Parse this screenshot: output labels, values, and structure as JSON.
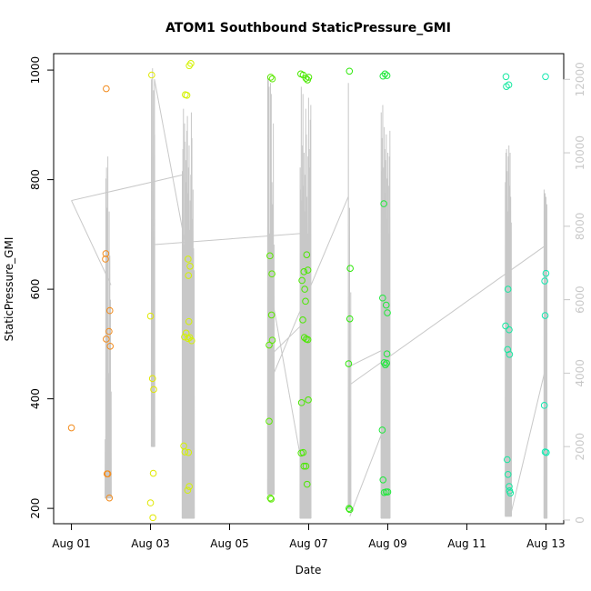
{
  "chart_data": {
    "type": "scatter",
    "title": "ATOM1 Southbound StaticPressure_GMI",
    "xlabel": "Date",
    "ylabel": "StaticPressure_GMI",
    "x_ticks": [
      {
        "day": 0,
        "label": "Aug 01"
      },
      {
        "day": 2,
        "label": "Aug 03"
      },
      {
        "day": 4,
        "label": "Aug 05"
      },
      {
        "day": 6,
        "label": "Aug 07"
      },
      {
        "day": 8,
        "label": "Aug 09"
      },
      {
        "day": 10,
        "label": "Aug 11"
      },
      {
        "day": 12,
        "label": "Aug 13"
      }
    ],
    "xlim": [
      -0.45,
      12.45
    ],
    "ylim": [
      172,
      1030
    ],
    "y_ticks": [
      200,
      400,
      600,
      800,
      1000
    ],
    "y2lim": [
      -100,
      12700
    ],
    "y2_ticks": [
      0,
      2000,
      4000,
      6000,
      8000,
      10000,
      12000
    ],
    "points": [
      {
        "x": 0.0,
        "y": 347,
        "c": "#f28c1e"
      },
      {
        "x": 0.88,
        "y": 966,
        "c": "#f28c1e"
      },
      {
        "x": 0.87,
        "y": 665,
        "c": "#f28c1e"
      },
      {
        "x": 0.86,
        "y": 655,
        "c": "#f28c1e"
      },
      {
        "x": 0.97,
        "y": 561,
        "c": "#f28c1e"
      },
      {
        "x": 0.95,
        "y": 523,
        "c": "#f28c1e"
      },
      {
        "x": 0.88,
        "y": 509,
        "c": "#f28c1e"
      },
      {
        "x": 0.98,
        "y": 496,
        "c": "#f28c1e"
      },
      {
        "x": 0.9,
        "y": 263,
        "c": "#f28c1e"
      },
      {
        "x": 0.92,
        "y": 263,
        "c": "#f28c1e"
      },
      {
        "x": 0.96,
        "y": 219,
        "c": "#f28c1e"
      },
      {
        "x": 2.03,
        "y": 991,
        "c": "#e0e800"
      },
      {
        "x": 2.0,
        "y": 551,
        "c": "#e0e800"
      },
      {
        "x": 2.05,
        "y": 437,
        "c": "#e0e800"
      },
      {
        "x": 2.08,
        "y": 417,
        "c": "#e0e800"
      },
      {
        "x": 2.07,
        "y": 264,
        "c": "#e0e800"
      },
      {
        "x": 2.0,
        "y": 210,
        "c": "#e0e800"
      },
      {
        "x": 2.06,
        "y": 183,
        "c": "#e0e800"
      },
      {
        "x": 2.88,
        "y": 955,
        "c": "#d4f200"
      },
      {
        "x": 2.92,
        "y": 954,
        "c": "#d4f200"
      },
      {
        "x": 2.98,
        "y": 1008,
        "c": "#d4f200"
      },
      {
        "x": 3.02,
        "y": 1012,
        "c": "#d4f200"
      },
      {
        "x": 2.95,
        "y": 655,
        "c": "#d4f200"
      },
      {
        "x": 3.0,
        "y": 642,
        "c": "#d4f200"
      },
      {
        "x": 2.96,
        "y": 625,
        "c": "#d4f200"
      },
      {
        "x": 2.97,
        "y": 541,
        "c": "#d4f200"
      },
      {
        "x": 2.9,
        "y": 520,
        "c": "#d4f200"
      },
      {
        "x": 2.86,
        "y": 513,
        "c": "#d4f200"
      },
      {
        "x": 2.95,
        "y": 510,
        "c": "#d4f200"
      },
      {
        "x": 2.99,
        "y": 512,
        "c": "#d4f200"
      },
      {
        "x": 3.04,
        "y": 506,
        "c": "#d4f200"
      },
      {
        "x": 2.84,
        "y": 314,
        "c": "#d4f200"
      },
      {
        "x": 2.87,
        "y": 303,
        "c": "#d4f200"
      },
      {
        "x": 2.96,
        "y": 302,
        "c": "#d4f200"
      },
      {
        "x": 2.94,
        "y": 233,
        "c": "#d4f200"
      },
      {
        "x": 2.98,
        "y": 240,
        "c": "#d4f200"
      },
      {
        "x": 5.04,
        "y": 987,
        "c": "#5ae800"
      },
      {
        "x": 5.08,
        "y": 984,
        "c": "#5ae800"
      },
      {
        "x": 5.02,
        "y": 661,
        "c": "#5ae800"
      },
      {
        "x": 5.07,
        "y": 628,
        "c": "#5ae800"
      },
      {
        "x": 5.06,
        "y": 553,
        "c": "#5ae800"
      },
      {
        "x": 5.08,
        "y": 507,
        "c": "#5ae800"
      },
      {
        "x": 5.0,
        "y": 498,
        "c": "#5ae800"
      },
      {
        "x": 5.0,
        "y": 359,
        "c": "#5ae800"
      },
      {
        "x": 5.03,
        "y": 219,
        "c": "#5ae800"
      },
      {
        "x": 5.05,
        "y": 217,
        "c": "#5ae800"
      },
      {
        "x": 5.8,
        "y": 993,
        "c": "#4ae800"
      },
      {
        "x": 5.86,
        "y": 991,
        "c": "#4ae800"
      },
      {
        "x": 5.93,
        "y": 985,
        "c": "#4ae800"
      },
      {
        "x": 6.0,
        "y": 987,
        "c": "#4ae800"
      },
      {
        "x": 5.97,
        "y": 982,
        "c": "#4ae800"
      },
      {
        "x": 5.83,
        "y": 616,
        "c": "#4ae800"
      },
      {
        "x": 5.88,
        "y": 632,
        "c": "#4ae800"
      },
      {
        "x": 5.95,
        "y": 663,
        "c": "#4ae800"
      },
      {
        "x": 5.98,
        "y": 635,
        "c": "#4ae800"
      },
      {
        "x": 5.9,
        "y": 600,
        "c": "#4ae800"
      },
      {
        "x": 5.92,
        "y": 578,
        "c": "#4ae800"
      },
      {
        "x": 5.85,
        "y": 544,
        "c": "#4ae800"
      },
      {
        "x": 5.89,
        "y": 512,
        "c": "#4ae800"
      },
      {
        "x": 5.94,
        "y": 509,
        "c": "#4ae800"
      },
      {
        "x": 5.98,
        "y": 508,
        "c": "#4ae800"
      },
      {
        "x": 5.82,
        "y": 393,
        "c": "#4ae800"
      },
      {
        "x": 5.99,
        "y": 398,
        "c": "#4ae800"
      },
      {
        "x": 5.81,
        "y": 301,
        "c": "#4ae800"
      },
      {
        "x": 5.86,
        "y": 302,
        "c": "#4ae800"
      },
      {
        "x": 5.88,
        "y": 277,
        "c": "#4ae800"
      },
      {
        "x": 5.93,
        "y": 277,
        "c": "#4ae800"
      },
      {
        "x": 5.96,
        "y": 244,
        "c": "#4ae800"
      },
      {
        "x": 7.03,
        "y": 998,
        "c": "#2ee80a"
      },
      {
        "x": 7.05,
        "y": 638,
        "c": "#2ee80a"
      },
      {
        "x": 7.04,
        "y": 546,
        "c": "#2ee80a"
      },
      {
        "x": 7.01,
        "y": 464,
        "c": "#2ee80a"
      },
      {
        "x": 7.02,
        "y": 200,
        "c": "#2ee80a"
      },
      {
        "x": 7.04,
        "y": 198,
        "c": "#2ee80a"
      },
      {
        "x": 7.88,
        "y": 989,
        "c": "#1ee83a"
      },
      {
        "x": 7.93,
        "y": 993,
        "c": "#1ee83a"
      },
      {
        "x": 7.98,
        "y": 990,
        "c": "#1ee83a"
      },
      {
        "x": 7.9,
        "y": 756,
        "c": "#1ee83a"
      },
      {
        "x": 7.87,
        "y": 584,
        "c": "#1ee83a"
      },
      {
        "x": 7.96,
        "y": 571,
        "c": "#1ee83a"
      },
      {
        "x": 7.99,
        "y": 557,
        "c": "#1ee83a"
      },
      {
        "x": 7.98,
        "y": 482,
        "c": "#1ee83a"
      },
      {
        "x": 7.91,
        "y": 466,
        "c": "#1ee83a"
      },
      {
        "x": 7.94,
        "y": 462,
        "c": "#1ee83a"
      },
      {
        "x": 7.97,
        "y": 465,
        "c": "#1ee83a"
      },
      {
        "x": 7.86,
        "y": 343,
        "c": "#1ee83a"
      },
      {
        "x": 7.88,
        "y": 252,
        "c": "#1ee83a"
      },
      {
        "x": 7.91,
        "y": 229,
        "c": "#1ee83a"
      },
      {
        "x": 7.96,
        "y": 230,
        "c": "#1ee83a"
      },
      {
        "x": 8.0,
        "y": 230,
        "c": "#1ee83a"
      },
      {
        "x": 10.99,
        "y": 988,
        "c": "#14e8a0"
      },
      {
        "x": 11.06,
        "y": 973,
        "c": "#14e8a0"
      },
      {
        "x": 11.0,
        "y": 970,
        "c": "#14e8a0"
      },
      {
        "x": 11.04,
        "y": 600,
        "c": "#14e8a0"
      },
      {
        "x": 10.98,
        "y": 533,
        "c": "#14e8a0"
      },
      {
        "x": 11.07,
        "y": 526,
        "c": "#14e8a0"
      },
      {
        "x": 11.03,
        "y": 490,
        "c": "#14e8a0"
      },
      {
        "x": 11.08,
        "y": 481,
        "c": "#14e8a0"
      },
      {
        "x": 11.02,
        "y": 289,
        "c": "#14e8a0"
      },
      {
        "x": 11.04,
        "y": 262,
        "c": "#14e8a0"
      },
      {
        "x": 11.07,
        "y": 240,
        "c": "#14e8a0"
      },
      {
        "x": 11.08,
        "y": 232,
        "c": "#14e8a0"
      },
      {
        "x": 11.1,
        "y": 228,
        "c": "#14e8a0"
      },
      {
        "x": 11.99,
        "y": 988,
        "c": "#14e8b0"
      },
      {
        "x": 12.0,
        "y": 629,
        "c": "#14e8b0"
      },
      {
        "x": 11.97,
        "y": 615,
        "c": "#14e8b0"
      },
      {
        "x": 11.98,
        "y": 552,
        "c": "#14e8b0"
      },
      {
        "x": 11.96,
        "y": 388,
        "c": "#14e8b0"
      },
      {
        "x": 11.98,
        "y": 303,
        "c": "#14e8b0"
      },
      {
        "x": 12.01,
        "y": 302,
        "c": "#14e8b0"
      }
    ],
    "secondary_series": {
      "name": "altitude trace",
      "color": "#c8c8c8",
      "bursts": [
        {
          "x0": 0.85,
          "x1": 1.0,
          "n": 10,
          "hi": [
            2200,
            9300,
            9600,
            8500,
            9900,
            4000,
            8400,
            7200,
            6000,
            3500
          ],
          "lo": 600
        },
        {
          "x0": 2.02,
          "x1": 2.1,
          "n": 4,
          "hi": [
            12000,
            12300,
            11700,
            10500
          ],
          "lo": 2000
        },
        {
          "x0": 2.8,
          "x1": 3.1,
          "n": 22,
          "hi": [
            9500,
            10100,
            11200,
            7500,
            10800,
            10300,
            9800,
            9200,
            10600,
            11000,
            8900,
            9600,
            10200,
            7900,
            8700,
            9400,
            11100,
            10400,
            8200,
            9000,
            7400,
            6800
          ],
          "lo": 50
        },
        {
          "x0": 4.96,
          "x1": 5.12,
          "n": 10,
          "hi": [
            12100,
            12000,
            11800,
            7800,
            11900,
            11600,
            9200,
            8600,
            10800,
            7500
          ],
          "lo": 700
        },
        {
          "x0": 5.78,
          "x1": 6.05,
          "n": 20,
          "hi": [
            9600,
            9000,
            11800,
            8700,
            10200,
            11600,
            9100,
            10000,
            8400,
            9400,
            11200,
            10500,
            8800,
            7800,
            9900,
            11500,
            10100,
            9600,
            10900,
            11300
          ],
          "lo": 50
        },
        {
          "x0": 7.0,
          "x1": 7.06,
          "n": 3,
          "hi": [
            11900,
            8500,
            6200
          ],
          "lo": 300
        },
        {
          "x0": 7.83,
          "x1": 8.05,
          "n": 18,
          "hi": [
            11100,
            9500,
            10400,
            11300,
            8700,
            9600,
            10700,
            10100,
            8900,
            9800,
            10500,
            8200,
            9300,
            10000,
            7800,
            9100,
            9900,
            10600
          ],
          "lo": 50
        },
        {
          "x0": 10.97,
          "x1": 11.12,
          "n": 11,
          "hi": [
            9200,
            10000,
            10100,
            9500,
            8400,
            9900,
            10200,
            9100,
            10000,
            8800,
            8100
          ],
          "lo": 100
        },
        {
          "x0": 11.95,
          "x1": 12.02,
          "n": 4,
          "hi": [
            9000,
            8900,
            8800,
            8600
          ],
          "lo": 50
        }
      ],
      "connectors": [
        [
          [
            0.0,
            8700
          ],
          [
            1.0,
            6400
          ]
        ],
        [
          [
            0.0,
            8700
          ],
          [
            2.02,
            9200
          ]
        ],
        [
          [
            2.02,
            9200
          ],
          [
            2.82,
            9400
          ]
        ],
        [
          [
            2.1,
            12000
          ],
          [
            2.1,
            7500
          ]
        ],
        [
          [
            2.1,
            7500
          ],
          [
            5.78,
            7800
          ]
        ],
        [
          [
            2.1,
            12000
          ],
          [
            3.0,
            6800
          ]
        ],
        [
          [
            5.12,
            4000
          ],
          [
            7.0,
            8800
          ]
        ],
        [
          [
            5.1,
            5900
          ],
          [
            5.96,
            700
          ]
        ],
        [
          [
            7.06,
            3700
          ],
          [
            12.02,
            7500
          ]
        ],
        [
          [
            7.04,
            100
          ],
          [
            7.9,
            2500
          ]
        ],
        [
          [
            7.06,
            4200
          ],
          [
            8.0,
            4700
          ]
        ],
        [
          [
            11.05,
            5800
          ],
          [
            11.0,
            200
          ]
        ],
        [
          [
            11.12,
            200
          ],
          [
            11.96,
            4000
          ]
        ],
        [
          [
            5.05,
            4500
          ],
          [
            6.0,
            5500
          ]
        ]
      ]
    }
  }
}
